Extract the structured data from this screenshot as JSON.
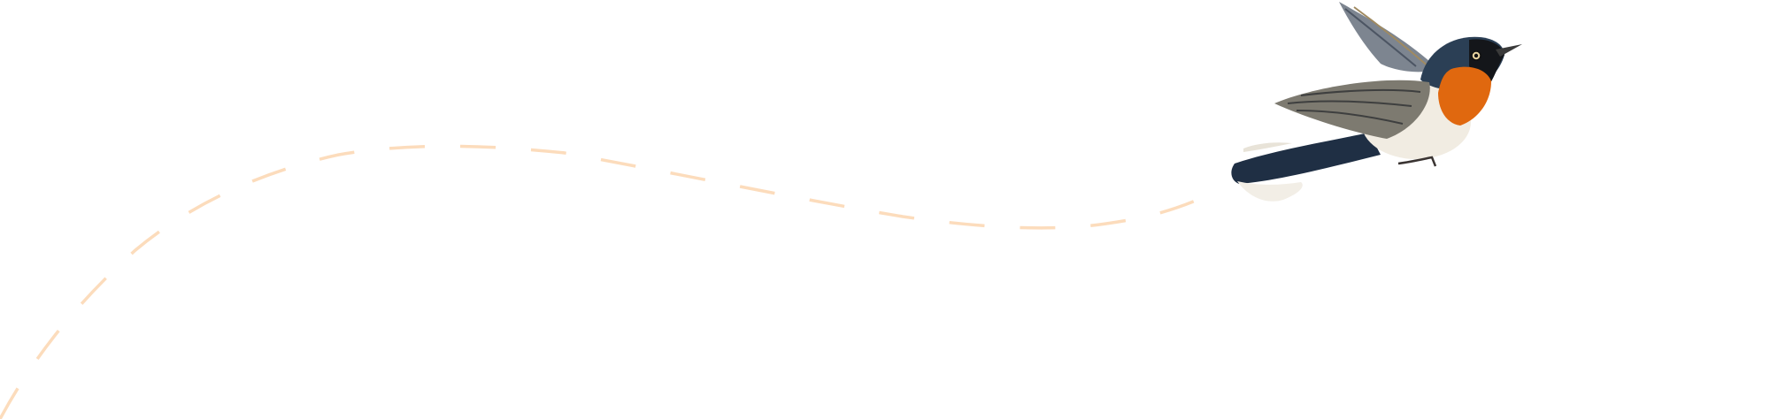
{
  "illustration": {
    "subject": "bird-icon",
    "colors": {
      "background": "#ffffff",
      "flight_path": "#fcdcbc",
      "bird_blue": "#2b3f55",
      "bird_orange": "#e0680f",
      "bird_belly": "#f1ece2",
      "bird_wing": "#7d7a70"
    }
  }
}
